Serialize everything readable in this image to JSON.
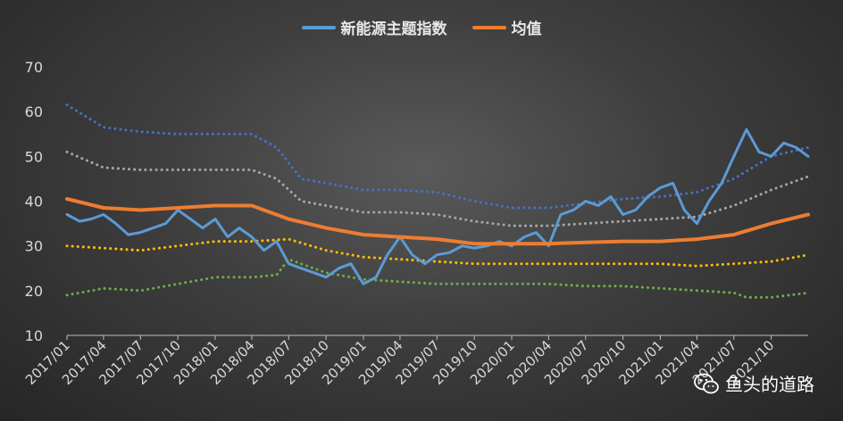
{
  "chart_data": {
    "type": "line",
    "title": "",
    "xlabel": "",
    "ylabel": "",
    "ylim": [
      10,
      70
    ],
    "yticks": [
      "10",
      "20",
      "30",
      "40",
      "50",
      "60",
      "70"
    ],
    "xticks": [
      "2017/01",
      "2017/04",
      "2017/07",
      "2017/10",
      "2018/01",
      "2018/04",
      "2018/07",
      "2018/10",
      "2019/01",
      "2019/04",
      "2019/07",
      "2019/10",
      "2020/01",
      "2020/04",
      "2020/07",
      "2020/10",
      "2021/01",
      "2021/04",
      "2021/07",
      "2021/10"
    ],
    "x_range": [
      "2017/01/01",
      "2021/12/31"
    ],
    "legend_position": "top-center",
    "series": [
      {
        "name": "新能源主题指数",
        "color": "#5b9bd5",
        "style": "solid",
        "points": [
          [
            "2017/01/01",
            37
          ],
          [
            "2017/02/01",
            35.5
          ],
          [
            "2017/03/01",
            36
          ],
          [
            "2017/04/01",
            37
          ],
          [
            "2017/05/01",
            35
          ],
          [
            "2017/06/01",
            32.5
          ],
          [
            "2017/07/01",
            33
          ],
          [
            "2017/08/01",
            34
          ],
          [
            "2017/09/01",
            35
          ],
          [
            "2017/10/01",
            38
          ],
          [
            "2017/11/01",
            36
          ],
          [
            "2017/12/01",
            34
          ],
          [
            "2018/01/01",
            36
          ],
          [
            "2018/02/01",
            32
          ],
          [
            "2018/03/01",
            34
          ],
          [
            "2018/04/01",
            32
          ],
          [
            "2018/05/01",
            29
          ],
          [
            "2018/06/01",
            31
          ],
          [
            "2018/07/01",
            26
          ],
          [
            "2018/08/01",
            25
          ],
          [
            "2018/09/01",
            24
          ],
          [
            "2018/10/01",
            23
          ],
          [
            "2018/11/01",
            25
          ],
          [
            "2018/12/01",
            26
          ],
          [
            "2019/01/01",
            21.5
          ],
          [
            "2019/02/01",
            23
          ],
          [
            "2019/03/01",
            28
          ],
          [
            "2019/04/01",
            32
          ],
          [
            "2019/05/01",
            28
          ],
          [
            "2019/06/01",
            26
          ],
          [
            "2019/07/01",
            28
          ],
          [
            "2019/08/01",
            28.5
          ],
          [
            "2019/09/01",
            30
          ],
          [
            "2019/10/01",
            29.5
          ],
          [
            "2019/11/01",
            30
          ],
          [
            "2019/12/01",
            31
          ],
          [
            "2020/01/01",
            30
          ],
          [
            "2020/02/01",
            32
          ],
          [
            "2020/03/01",
            33
          ],
          [
            "2020/04/01",
            30
          ],
          [
            "2020/05/01",
            37
          ],
          [
            "2020/06/01",
            38
          ],
          [
            "2020/07/01",
            40
          ],
          [
            "2020/08/01",
            39
          ],
          [
            "2020/09/01",
            41
          ],
          [
            "2020/10/01",
            37
          ],
          [
            "2020/11/01",
            38
          ],
          [
            "2020/12/01",
            41
          ],
          [
            "2021/01/01",
            43
          ],
          [
            "2021/02/01",
            44
          ],
          [
            "2021/03/01",
            38
          ],
          [
            "2021/04/01",
            35
          ],
          [
            "2021/05/01",
            40
          ],
          [
            "2021/06/01",
            44
          ],
          [
            "2021/07/01",
            50
          ],
          [
            "2021/08/01",
            56
          ],
          [
            "2021/09/01",
            51
          ],
          [
            "2021/10/01",
            50
          ],
          [
            "2021/11/01",
            53
          ],
          [
            "2021/12/01",
            52
          ],
          [
            "2021/12/31",
            50
          ]
        ]
      },
      {
        "name": "均值",
        "color": "#ed7d31",
        "style": "solid",
        "points": [
          [
            "2017/01/01",
            40.5
          ],
          [
            "2017/04/01",
            38.5
          ],
          [
            "2017/07/01",
            38
          ],
          [
            "2017/10/01",
            38.5
          ],
          [
            "2018/01/01",
            39
          ],
          [
            "2018/04/01",
            39
          ],
          [
            "2018/07/01",
            36
          ],
          [
            "2018/10/01",
            34
          ],
          [
            "2019/01/01",
            32.5
          ],
          [
            "2019/04/01",
            32
          ],
          [
            "2019/07/01",
            31.5
          ],
          [
            "2019/10/01",
            30.5
          ],
          [
            "2020/01/01",
            30.5
          ],
          [
            "2020/04/01",
            30.5
          ],
          [
            "2020/07/01",
            30.8
          ],
          [
            "2020/10/01",
            31
          ],
          [
            "2021/01/01",
            31
          ],
          [
            "2021/04/01",
            31.5
          ],
          [
            "2021/07/01",
            32.5
          ],
          [
            "2021/10/01",
            35
          ],
          [
            "2021/12/31",
            37
          ]
        ]
      },
      {
        "name": "",
        "color": "#4472c4",
        "style": "dotted",
        "points": [
          [
            "2017/01/01",
            61.5
          ],
          [
            "2017/04/01",
            56.5
          ],
          [
            "2017/07/01",
            55.5
          ],
          [
            "2017/10/01",
            55
          ],
          [
            "2018/01/01",
            55
          ],
          [
            "2018/04/01",
            55
          ],
          [
            "2018/06/01",
            52
          ],
          [
            "2018/08/01",
            45
          ],
          [
            "2018/10/01",
            44
          ],
          [
            "2019/01/01",
            42.5
          ],
          [
            "2019/04/01",
            42.5
          ],
          [
            "2019/07/01",
            42
          ],
          [
            "2019/10/01",
            40
          ],
          [
            "2020/01/01",
            38.5
          ],
          [
            "2020/04/01",
            38.5
          ],
          [
            "2020/07/01",
            39.5
          ],
          [
            "2020/10/01",
            40.5
          ],
          [
            "2021/01/01",
            41
          ],
          [
            "2021/04/01",
            42
          ],
          [
            "2021/07/01",
            45
          ],
          [
            "2021/10/01",
            50
          ],
          [
            "2021/12/31",
            52
          ]
        ]
      },
      {
        "name": "",
        "color": "#a6a6a6",
        "style": "dotted",
        "points": [
          [
            "2017/01/01",
            51
          ],
          [
            "2017/04/01",
            47.5
          ],
          [
            "2017/07/01",
            47
          ],
          [
            "2017/10/01",
            47
          ],
          [
            "2018/01/01",
            47
          ],
          [
            "2018/04/01",
            47
          ],
          [
            "2018/06/01",
            45
          ],
          [
            "2018/08/01",
            40
          ],
          [
            "2018/10/01",
            39
          ],
          [
            "2019/01/01",
            37.5
          ],
          [
            "2019/04/01",
            37.5
          ],
          [
            "2019/07/01",
            37
          ],
          [
            "2019/10/01",
            35.5
          ],
          [
            "2020/01/01",
            34.5
          ],
          [
            "2020/04/01",
            34.5
          ],
          [
            "2020/07/01",
            35
          ],
          [
            "2020/10/01",
            35.5
          ],
          [
            "2021/01/01",
            36
          ],
          [
            "2021/04/01",
            36.5
          ],
          [
            "2021/07/01",
            39
          ],
          [
            "2021/10/01",
            42.5
          ],
          [
            "2021/12/31",
            45.5
          ]
        ]
      },
      {
        "name": "",
        "color": "#ffc000",
        "style": "dotted",
        "points": [
          [
            "2017/01/01",
            30
          ],
          [
            "2017/04/01",
            29.5
          ],
          [
            "2017/07/01",
            29
          ],
          [
            "2017/10/01",
            30
          ],
          [
            "2018/01/01",
            31
          ],
          [
            "2018/04/01",
            31
          ],
          [
            "2018/07/01",
            31.5
          ],
          [
            "2018/10/01",
            29
          ],
          [
            "2019/01/01",
            27.5
          ],
          [
            "2019/04/01",
            27
          ],
          [
            "2019/07/01",
            26.5
          ],
          [
            "2019/10/01",
            26
          ],
          [
            "2020/01/01",
            26
          ],
          [
            "2020/04/01",
            26
          ],
          [
            "2020/07/01",
            26
          ],
          [
            "2020/10/01",
            26
          ],
          [
            "2021/01/01",
            26
          ],
          [
            "2021/04/01",
            25.5
          ],
          [
            "2021/07/01",
            26
          ],
          [
            "2021/10/01",
            26.5
          ],
          [
            "2021/12/31",
            28
          ]
        ]
      },
      {
        "name": "",
        "color": "#70ad47",
        "style": "dotted",
        "points": [
          [
            "2017/01/01",
            19
          ],
          [
            "2017/04/01",
            20.5
          ],
          [
            "2017/07/01",
            20
          ],
          [
            "2017/10/01",
            21.5
          ],
          [
            "2018/01/01",
            23
          ],
          [
            "2018/04/01",
            23
          ],
          [
            "2018/06/01",
            23.5
          ],
          [
            "2018/07/01",
            27
          ],
          [
            "2018/10/01",
            24
          ],
          [
            "2019/01/01",
            22.5
          ],
          [
            "2019/04/01",
            22
          ],
          [
            "2019/07/01",
            21.5
          ],
          [
            "2019/10/01",
            21.5
          ],
          [
            "2020/01/01",
            21.5
          ],
          [
            "2020/04/01",
            21.5
          ],
          [
            "2020/07/01",
            21
          ],
          [
            "2020/10/01",
            21
          ],
          [
            "2021/01/01",
            20.5
          ],
          [
            "2021/04/01",
            20
          ],
          [
            "2021/07/01",
            19.5
          ],
          [
            "2021/08/01",
            18.5
          ],
          [
            "2021/10/01",
            18.5
          ],
          [
            "2021/12/31",
            19.5
          ]
        ]
      }
    ]
  },
  "watermark": {
    "text": "鱼头的道路",
    "icon": "wechat-icon"
  }
}
